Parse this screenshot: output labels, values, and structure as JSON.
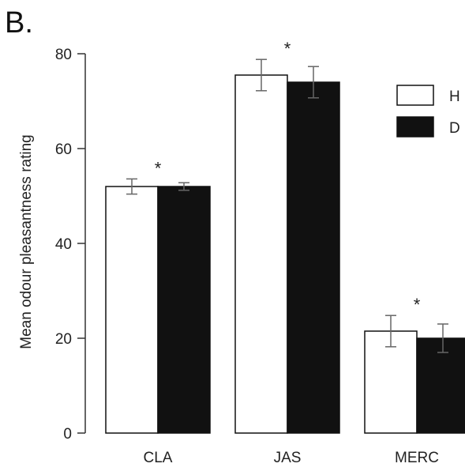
{
  "panel_label": "B.",
  "chart_data": {
    "type": "bar",
    "categories": [
      "CLA",
      "JAS",
      "MERC"
    ],
    "series": [
      {
        "name": "H",
        "values": [
          52,
          75.5,
          21.5
        ],
        "errors": [
          1.6,
          3.3,
          3.3
        ],
        "color": "#ffffff"
      },
      {
        "name": "D",
        "values": [
          52,
          74,
          20
        ],
        "errors": [
          0.8,
          3.3,
          3.0
        ],
        "color": "#111111"
      }
    ],
    "significance": [
      "*",
      "*",
      "*"
    ],
    "ylabel": "Mean odour pleasantness rating",
    "xlabel": "",
    "ylim": [
      0,
      80
    ],
    "yticks": [
      0,
      20,
      40,
      60,
      80
    ],
    "legend_position": "top-right",
    "grid": false
  }
}
